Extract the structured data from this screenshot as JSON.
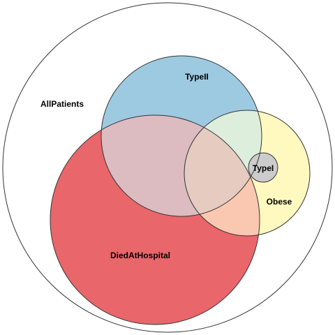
{
  "diagram": {
    "type": "venn-euler",
    "sets": [
      {
        "key": "all_patients",
        "label": "AllPatients",
        "color": "#ffffff"
      },
      {
        "key": "type_ii",
        "label": "TypeII",
        "color": "#9ecae1"
      },
      {
        "key": "died_at_hospital",
        "label": "DiedAtHospital",
        "color": "#e9666b"
      },
      {
        "key": "obese",
        "label": "Obese",
        "color": "#fff9c0"
      },
      {
        "key": "type_i",
        "label": "TypeI",
        "color": "#cccccc"
      }
    ],
    "overlap_colors": {
      "type_ii_died": "#dcbcc1",
      "type_ii_obese": "#ddeedd",
      "died_obese": "#fac8b0",
      "type_ii_died_obese": "#e5cbc0"
    },
    "outline_color": "#333333"
  }
}
